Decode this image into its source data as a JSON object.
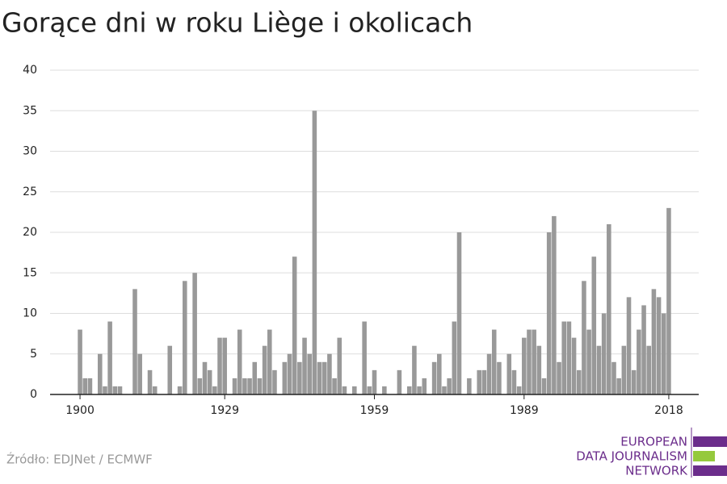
{
  "chart_data": {
    "type": "bar",
    "title": "Gorące dni w roku Liège i okolicach",
    "x": [
      1900,
      1901,
      1902,
      1903,
      1904,
      1905,
      1906,
      1907,
      1908,
      1909,
      1910,
      1911,
      1912,
      1913,
      1914,
      1915,
      1916,
      1917,
      1918,
      1919,
      1920,
      1921,
      1922,
      1923,
      1924,
      1925,
      1926,
      1927,
      1928,
      1929,
      1930,
      1931,
      1932,
      1933,
      1934,
      1935,
      1936,
      1937,
      1938,
      1939,
      1940,
      1941,
      1942,
      1943,
      1944,
      1945,
      1946,
      1947,
      1948,
      1949,
      1950,
      1951,
      1952,
      1953,
      1954,
      1955,
      1956,
      1957,
      1958,
      1959,
      1960,
      1961,
      1962,
      1963,
      1964,
      1965,
      1966,
      1967,
      1968,
      1969,
      1970,
      1971,
      1972,
      1973,
      1974,
      1975,
      1976,
      1977,
      1978,
      1979,
      1980,
      1981,
      1982,
      1983,
      1984,
      1985,
      1986,
      1987,
      1988,
      1989,
      1990,
      1991,
      1992,
      1993,
      1994,
      1995,
      1996,
      1997,
      1998,
      1999,
      2000,
      2001,
      2002,
      2003,
      2004,
      2005,
      2006,
      2007,
      2008,
      2009,
      2010,
      2011,
      2012,
      2013,
      2014,
      2015,
      2016,
      2017,
      2018
    ],
    "values": [
      8,
      2,
      2,
      0,
      5,
      1,
      9,
      1,
      1,
      0,
      0,
      13,
      5,
      0,
      3,
      1,
      0,
      0,
      6,
      0,
      1,
      14,
      0,
      15,
      2,
      4,
      3,
      1,
      7,
      7,
      0,
      2,
      8,
      2,
      2,
      4,
      2,
      6,
      8,
      3,
      0,
      4,
      5,
      17,
      4,
      7,
      5,
      35,
      4,
      4,
      5,
      2,
      7,
      1,
      0,
      1,
      0,
      9,
      1,
      3,
      0,
      1,
      0,
      0,
      3,
      0,
      1,
      6,
      1,
      2,
      0,
      4,
      5,
      1,
      2,
      9,
      20,
      0,
      2,
      0,
      3,
      3,
      5,
      8,
      4,
      0,
      5,
      3,
      1,
      7,
      8,
      8,
      6,
      2,
      20,
      22,
      4,
      9,
      9,
      7,
      3,
      14,
      8,
      17,
      6,
      10,
      21,
      4,
      2,
      6,
      12,
      3,
      8,
      11,
      6,
      13,
      12,
      10,
      23
    ],
    "color": "#999999",
    "xlim": [
      1894,
      2024
    ],
    "xticks": [
      1900,
      1929,
      1959,
      1989,
      2018
    ],
    "ylim": [
      0,
      40
    ],
    "yticks": [
      0,
      5,
      10,
      15,
      20,
      25,
      30,
      35,
      40
    ],
    "grid": true
  },
  "footer": {
    "source": "Źródło: EDJNet / ECMWF",
    "logo": [
      "EUROPEAN",
      "DATA JOURNALISM",
      "NETWORK"
    ]
  }
}
